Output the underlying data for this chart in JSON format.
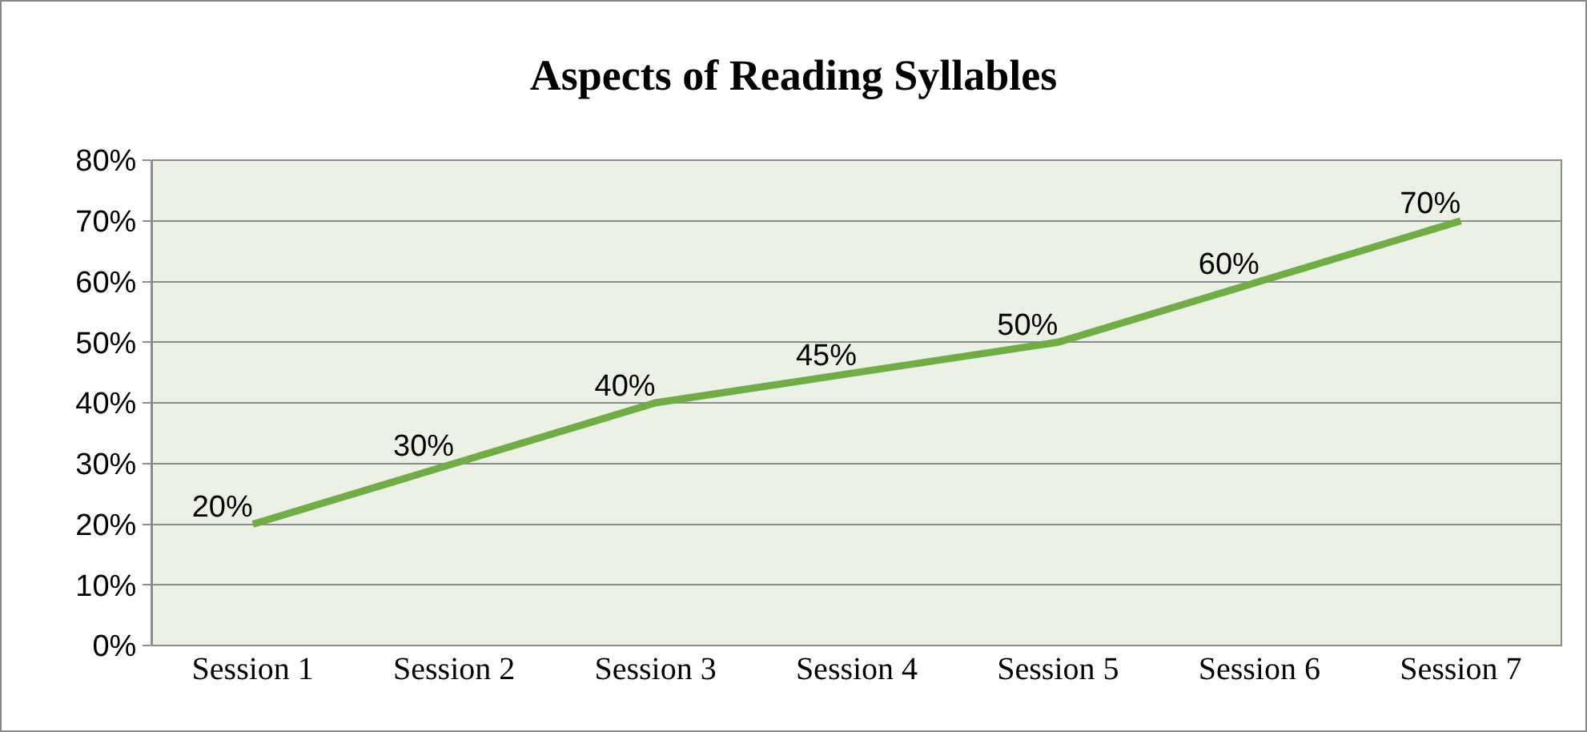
{
  "chart_data": {
    "type": "line",
    "title": "Aspects of Reading Syllables",
    "categories": [
      "Session 1",
      "Session 2",
      "Session 3",
      "Session 4",
      "Session 5",
      "Session 6",
      "Session 7"
    ],
    "series": [
      {
        "color": "#70ad47",
        "values": [
          20,
          30,
          40,
          45,
          50,
          60,
          70
        ],
        "value_labels": [
          "20%",
          "30%",
          "40%",
          "45%",
          "50%",
          "60%",
          "70%"
        ]
      }
    ],
    "ylim": [
      0,
      80
    ],
    "yticks": [
      {
        "value": 0,
        "label": "0%"
      },
      {
        "value": 10,
        "label": "10%"
      },
      {
        "value": 20,
        "label": "20%"
      },
      {
        "value": 30,
        "label": "30%"
      },
      {
        "value": 40,
        "label": "40%"
      },
      {
        "value": 50,
        "label": "50%"
      },
      {
        "value": 60,
        "label": "60%"
      },
      {
        "value": 70,
        "label": "70%"
      },
      {
        "value": 80,
        "label": "80%"
      }
    ],
    "grid": "y",
    "marker": "none",
    "line_style": "solid"
  }
}
